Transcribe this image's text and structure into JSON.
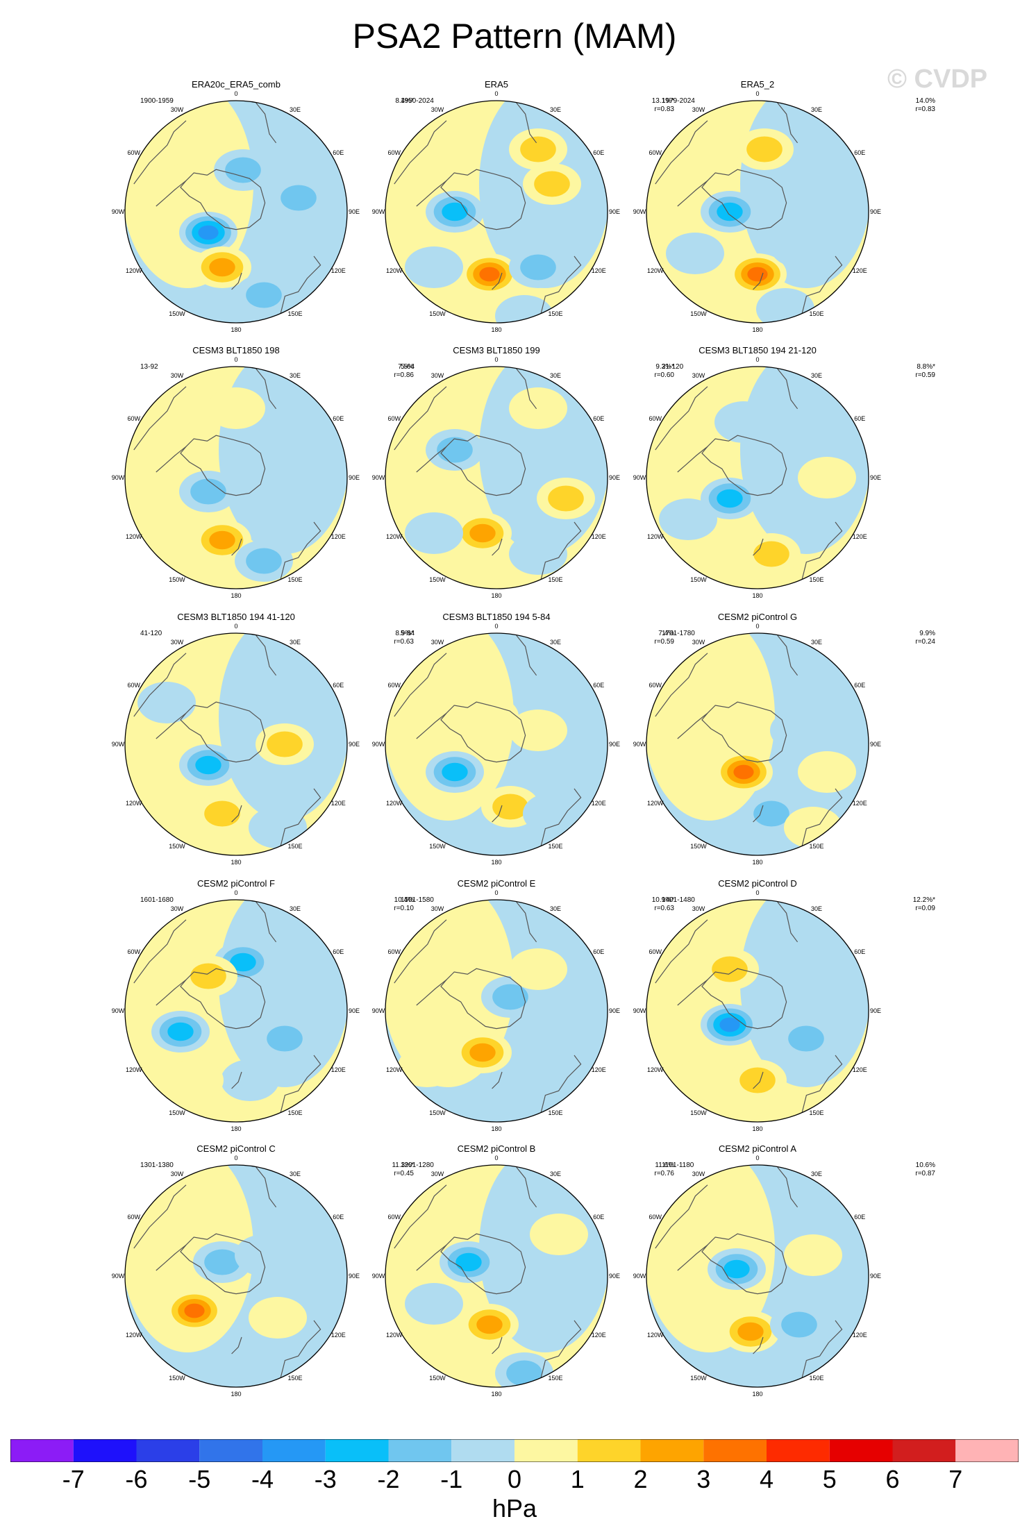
{
  "title": "PSA2 Pattern (MAM)",
  "watermark": "© CVDP",
  "lon_labels": [
    "0",
    "30E",
    "60E",
    "90E",
    "120E",
    "150E",
    "180",
    "150W",
    "120W",
    "90W",
    "60W",
    "30W"
  ],
  "panels": [
    {
      "title": "ERA20c_ERA5_comb",
      "period": "1900-1959",
      "pct": "8.4%*",
      "r": ""
    },
    {
      "title": "ERA5",
      "period": "1950-2024",
      "pct": "13.1%*",
      "r": "r=0.83"
    },
    {
      "title": "ERA5_2",
      "period": "1979-2024",
      "pct": "14.0%",
      "r": "r=0.83"
    },
    {
      "title": "CESM3 BLT1850 198",
      "period": "13-92",
      "pct": "7.5%",
      "r": "r=0.86"
    },
    {
      "title": "CESM3 BLT1850 199",
      "period": "5-64",
      "pct": "9.3%*",
      "r": "r=0.60"
    },
    {
      "title": "CESM3 BLT1850 194 21-120",
      "period": "21-120",
      "pct": "8.8%*",
      "r": "r=0.59"
    },
    {
      "title": "CESM3 BLT1850 194 41-120",
      "period": "41-120",
      "pct": "8.9%*",
      "r": "r=0.63"
    },
    {
      "title": "CESM3 BLT1850 194 5-84",
      "period": "5-84",
      "pct": "7.4%",
      "r": "r=0.59"
    },
    {
      "title": "CESM2 piControl G",
      "period": "1701-1780",
      "pct": "9.9%",
      "r": "r=0.24"
    },
    {
      "title": "CESM2 piControl F",
      "period": "1601-1680",
      "pct": "10.4%",
      "r": "r=0.10"
    },
    {
      "title": "CESM2 piControl E",
      "period": "1501-1580",
      "pct": "10.9%*",
      "r": "r=0.63"
    },
    {
      "title": "CESM2 piControl D",
      "period": "1401-1480",
      "pct": "12.2%*",
      "r": "r=0.09"
    },
    {
      "title": "CESM2 piControl C",
      "period": "1301-1380",
      "pct": "11.3%*",
      "r": "r=0.45"
    },
    {
      "title": "CESM2 piControl B",
      "period": "1201-1280",
      "pct": "11.6%",
      "r": "r=0.76"
    },
    {
      "title": "CESM2 piControl A",
      "period": "1101-1180",
      "pct": "10.6%",
      "r": "r=0.87"
    }
  ],
  "colorbar": {
    "unit": "hPa",
    "labels": [
      "-7",
      "-6",
      "-5",
      "-4",
      "-3",
      "-2",
      "-1",
      "0",
      "1",
      "2",
      "3",
      "4",
      "5",
      "6",
      "7"
    ],
    "colors": [
      "#8c1cf6",
      "#1e11fb",
      "#2b3fe8",
      "#3174ea",
      "#2598f5",
      "#09bff9",
      "#70c6ef",
      "#b0dcf0",
      "#fdf7a1",
      "#fed42a",
      "#fea400",
      "#fe7200",
      "#fe2b00",
      "#e60000",
      "#d21e1e",
      "#ffb3b5"
    ]
  }
}
